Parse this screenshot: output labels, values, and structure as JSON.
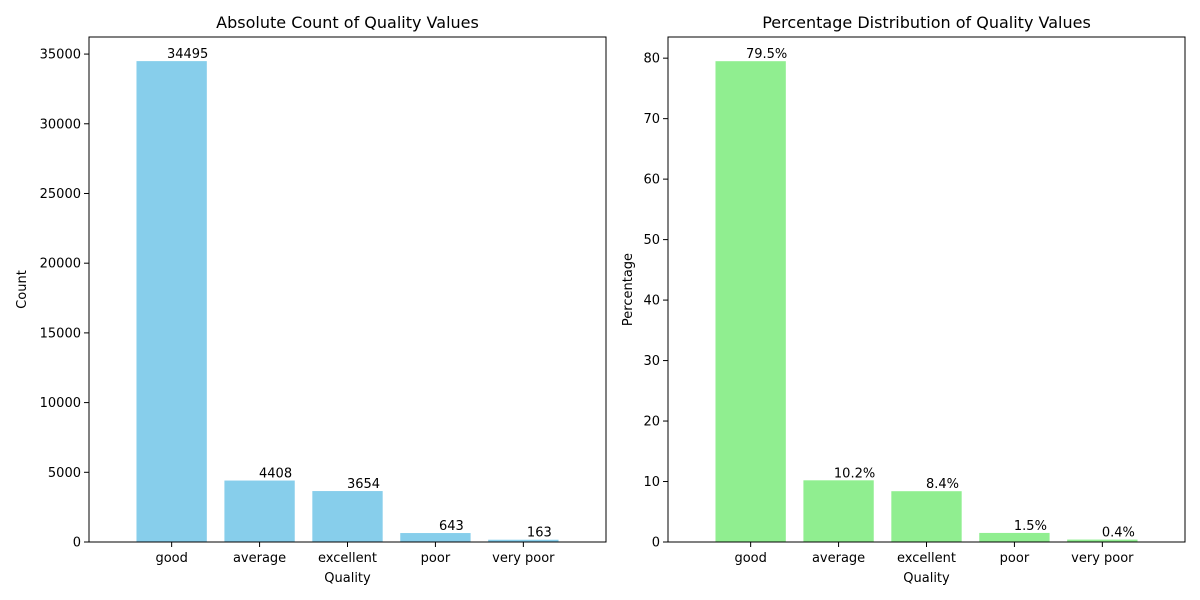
{
  "chart_data": [
    {
      "type": "bar",
      "title": "Absolute Count of Quality Values",
      "xlabel": "Quality",
      "ylabel": "Count",
      "categories": [
        "good",
        "average",
        "excellent",
        "poor",
        "very poor"
      ],
      "values": [
        34495,
        4408,
        3654,
        643,
        163
      ],
      "value_labels": [
        "34495",
        "4408",
        "3654",
        "643",
        "163"
      ],
      "ylim": [
        0,
        36225
      ],
      "yticks": [
        0,
        5000,
        10000,
        15000,
        20000,
        25000,
        30000,
        35000
      ],
      "ytick_labels": [
        "0",
        "5000",
        "10000",
        "15000",
        "20000",
        "25000",
        "30000",
        "35000"
      ],
      "bar_color": "#87ceeb",
      "grid": false,
      "legend": "none"
    },
    {
      "type": "bar",
      "title": "Percentage Distribution of Quality Values",
      "xlabel": "Quality",
      "ylabel": "Percentage",
      "categories": [
        "good",
        "average",
        "excellent",
        "poor",
        "very poor"
      ],
      "values": [
        79.5,
        10.2,
        8.4,
        1.5,
        0.4
      ],
      "value_labels": [
        "79.5%",
        "10.2%",
        "8.4%",
        "1.5%",
        "0.4%"
      ],
      "ylim": [
        0,
        83.5
      ],
      "yticks": [
        0,
        10,
        20,
        30,
        40,
        50,
        60,
        70,
        80
      ],
      "ytick_labels": [
        "0",
        "10",
        "20",
        "30",
        "40",
        "50",
        "60",
        "70",
        "80"
      ],
      "bar_color": "#90ee90",
      "grid": false,
      "legend": "none"
    }
  ]
}
